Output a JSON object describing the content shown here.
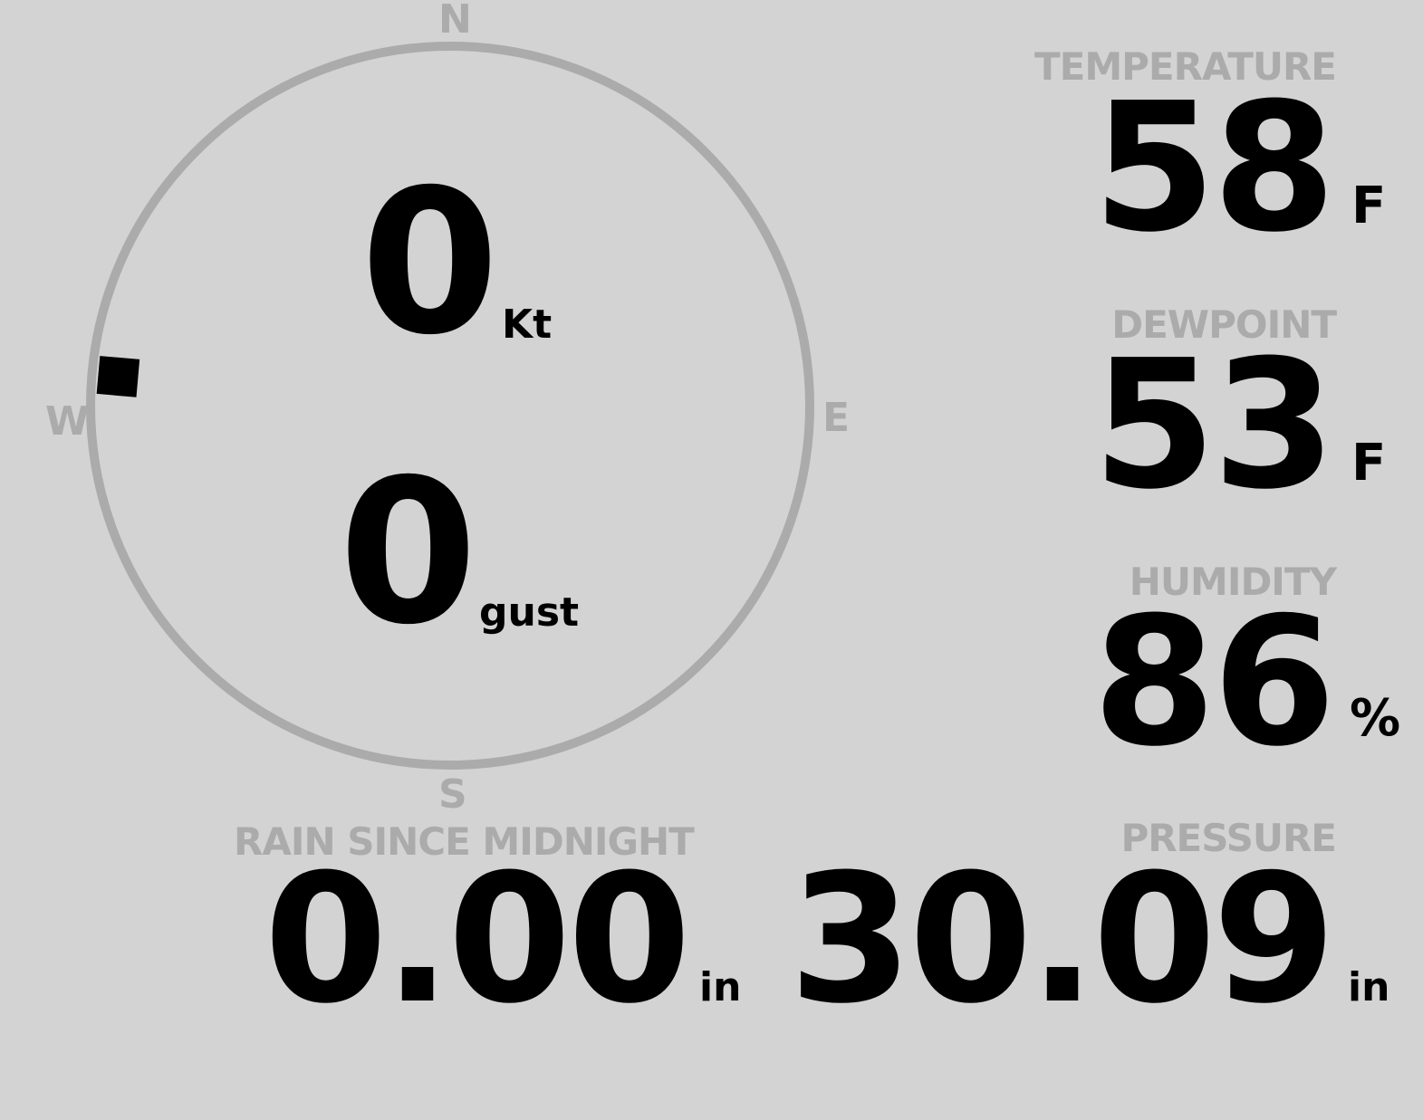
{
  "wind": {
    "speed": "0",
    "speed_unit": "Kt",
    "gust": "0",
    "gust_unit": "gust",
    "direction_degrees": 275,
    "compass": {
      "n": "N",
      "e": "E",
      "s": "S",
      "w": "W"
    }
  },
  "temperature": {
    "label": "TEMPERATURE",
    "value": "58",
    "unit": "F"
  },
  "dewpoint": {
    "label": "DEWPOINT",
    "value": "53",
    "unit": "F"
  },
  "humidity": {
    "label": "HUMIDITY",
    "value": "86",
    "unit": "%"
  },
  "rain": {
    "label": "RAIN SINCE MIDNIGHT",
    "value": "0.00",
    "unit": "in"
  },
  "pressure": {
    "label": "PRESSURE",
    "value": "30.09",
    "unit": "in"
  },
  "colors": {
    "background": "#d3d3d3",
    "label": "#ababab",
    "value": "#000000",
    "ring": "#ababab"
  }
}
